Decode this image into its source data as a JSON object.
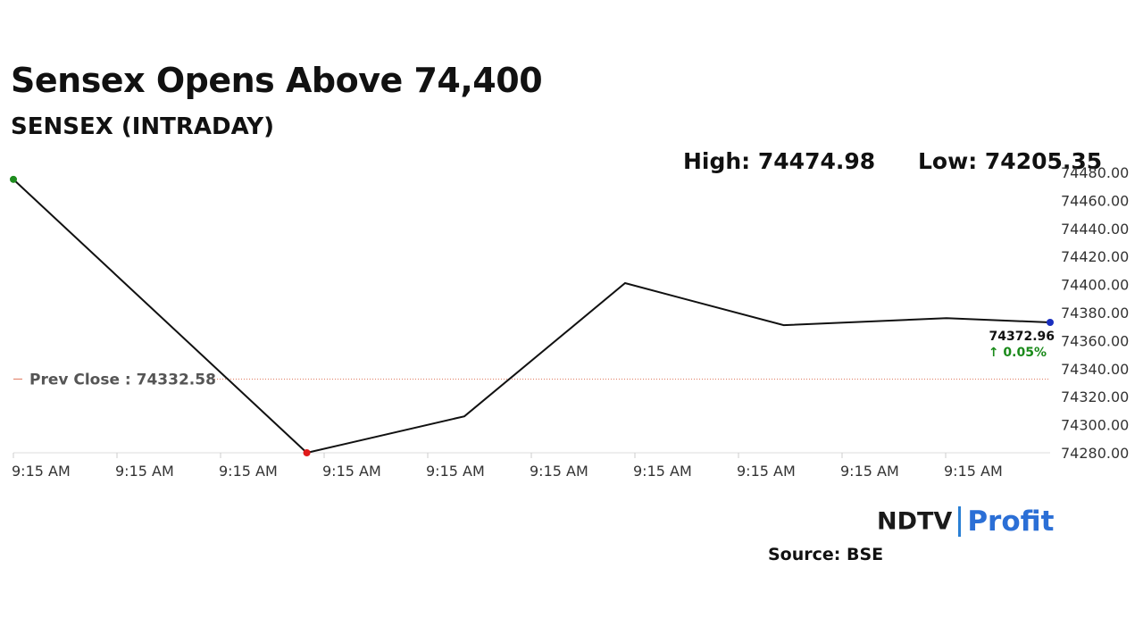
{
  "headline": "Sensex Opens Above 74,400",
  "subhead": "SENSEX (INTRADAY)",
  "stats": {
    "high": "High: 74474.98",
    "low": "Low: 74205.35"
  },
  "brand": {
    "name_left": "NDTV",
    "name_right": "Profit",
    "color_right": "#2b6fd6"
  },
  "source": "Source: BSE",
  "colors": {
    "line": "#111111",
    "prev_close": "#e07a5f",
    "up": "#1a8a1a",
    "start_dot": "#1e8c1e",
    "low_dot": "#e01b1b",
    "end_dot": "#1a2fbf"
  },
  "chart_data": {
    "type": "line",
    "title": "SENSEX (INTRADAY)",
    "x_tick_labels": [
      "9:15 AM",
      "9:15 AM",
      "9:15 AM",
      "9:15 AM",
      "9:15 AM",
      "9:15 AM",
      "9:15 AM",
      "9:15 AM",
      "9:15 AM",
      "9:15 AM"
    ],
    "y_ticks": [
      "74280.00",
      "74300.00",
      "74320.00",
      "74340.00",
      "74360.00",
      "74380.00",
      "74400.00",
      "74420.00",
      "74440.00",
      "74460.00",
      "74480.00"
    ],
    "ylim": [
      74280,
      74480
    ],
    "xlim": [
      0,
      10
    ],
    "series": [
      {
        "x": [
          0,
          2.83,
          4.35,
          5.9,
          7.43,
          9.0,
          10.0
        ],
        "y": [
          74475,
          74280,
          74306,
          74401,
          74371,
          74376,
          74373
        ]
      }
    ],
    "prev_close": {
      "label": "Prev Close : 74332.58",
      "value": 74332.58
    },
    "last": {
      "value": "74372.96",
      "change": "↑ 0.05%"
    },
    "markers": [
      {
        "x": 0,
        "y": 74475,
        "role": "start"
      },
      {
        "x": 2.83,
        "y": 74280,
        "role": "low"
      },
      {
        "x": 10.0,
        "y": 74373,
        "role": "end"
      }
    ],
    "grid": false,
    "legend": "none"
  }
}
